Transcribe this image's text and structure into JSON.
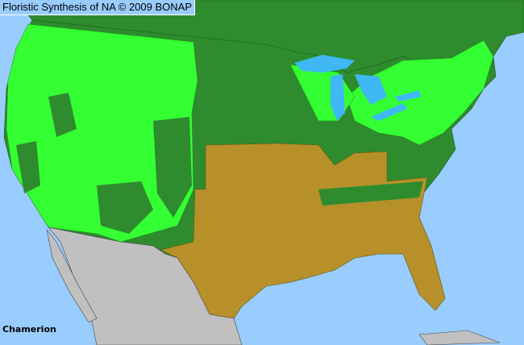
{
  "title": "Floristic Synthesis of NA © 2009 BONAP",
  "taxon_label": "Chamerion",
  "colors": {
    "ocean": "#99ccff",
    "lakes": "#3fb8f5",
    "present_dark_green": "#2e8b2e",
    "present_bright_green": "#33ff33",
    "absent_brown": "#b8902a",
    "mexico_gray": "#c0c0c0",
    "borders": "#333333"
  }
}
